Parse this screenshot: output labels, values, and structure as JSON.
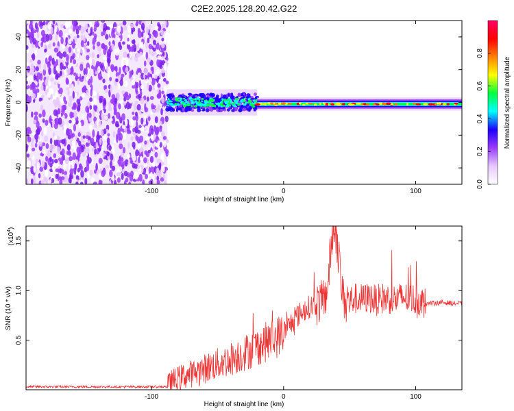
{
  "title": "C2E2.2025.128.20.42.G22",
  "chart_data": [
    {
      "type": "heatmap",
      "xlabel": "Height of straight line (km)",
      "ylabel": "Frequency (Hz)",
      "xlim": [
        -195,
        135
      ],
      "ylim": [
        -50,
        50
      ],
      "xticks": [
        -100,
        0,
        100
      ],
      "yticks": [
        -40,
        -20,
        0,
        20,
        40
      ],
      "colorbar": {
        "label": "Normalized spectral amplitude",
        "range": [
          0,
          1
        ],
        "ticks": [
          "0.0",
          "0.2",
          "0.4",
          "0.6",
          "0.8"
        ],
        "colors": [
          "#ffffff",
          "#e6c8ff",
          "#9b3cff",
          "#1e00ff",
          "#00ffff",
          "#00ff3c",
          "#ffff00",
          "#ff8000",
          "#ff0000",
          "#ff0066"
        ]
      },
      "regions": [
        {
          "name": "noise",
          "x": [
            -195,
            -88
          ],
          "freq": [
            -50,
            50
          ]
        },
        {
          "name": "spread",
          "x": [
            -88,
            -20
          ],
          "freq": [
            -8,
            8
          ]
        },
        {
          "name": "narrow",
          "x": [
            -20,
            135
          ],
          "freq": [
            -4,
            4
          ],
          "peak_freq": -1
        }
      ]
    },
    {
      "type": "line",
      "xlabel": "Height of straight line (km)",
      "ylabel": "SNR (10 * v/v)",
      "yscale_label": "(x10",
      "yscale_exp": "4",
      "xlim": [
        -195,
        135
      ],
      "ylim": [
        0,
        1.65
      ],
      "xticks": [
        -100,
        0,
        100
      ],
      "yticks": [
        "0.5",
        "1.0",
        "1.5"
      ],
      "color": "#ee3333",
      "series": [
        {
          "x": [
            -195,
            -150,
            -100,
            -88,
            -85,
            -75,
            -65,
            -55,
            -45,
            -35,
            -25,
            -15,
            -5,
            0,
            5,
            10,
            15,
            20,
            25,
            30,
            33,
            35,
            38,
            40,
            42,
            45,
            50,
            55,
            60,
            65,
            70,
            75,
            80,
            85,
            90,
            95,
            100,
            103,
            105,
            110,
            120,
            130,
            135
          ],
          "y": [
            0.03,
            0.03,
            0.03,
            0.03,
            0.08,
            0.14,
            0.18,
            0.24,
            0.28,
            0.34,
            0.4,
            0.47,
            0.53,
            0.58,
            0.66,
            0.74,
            0.8,
            0.84,
            0.86,
            0.9,
            1.0,
            1.3,
            1.65,
            1.55,
            1.3,
            0.92,
            0.9,
            0.92,
            0.91,
            0.93,
            0.9,
            0.92,
            0.92,
            0.91,
            0.93,
            0.92,
            0.91,
            0.9,
            0.88,
            0.87,
            0.88,
            0.87,
            0.87
          ]
        }
      ]
    }
  ]
}
